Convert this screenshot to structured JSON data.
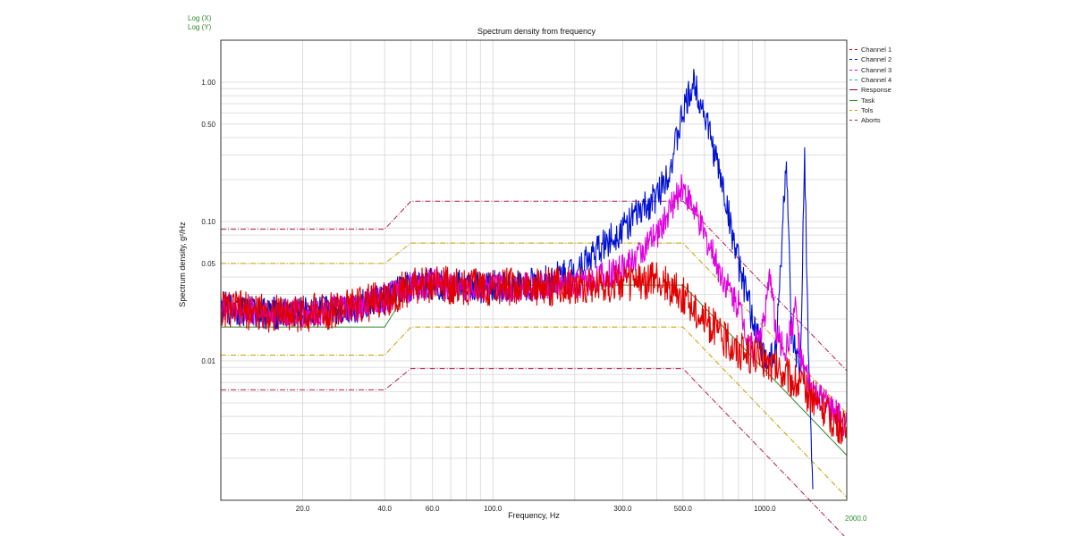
{
  "flags": {
    "log_x": "Log (X)",
    "log_y": "Log (Y)"
  },
  "chart_data": {
    "type": "line",
    "title": "Spectrum density from frequency",
    "xlabel": "Frequency, Hz",
    "ylabel": "Spectrum density, g²/Hz",
    "x_scale": "log",
    "y_scale": "log",
    "xlim": [
      10,
      2000
    ],
    "ylim": [
      0.001,
      2.0
    ],
    "x_ticks": [
      {
        "value": 20,
        "label": "20.0"
      },
      {
        "value": 40,
        "label": "40.0"
      },
      {
        "value": 60,
        "label": "60.0"
      },
      {
        "value": 100,
        "label": "100.0"
      },
      {
        "value": 300,
        "label": "300.0"
      },
      {
        "value": 500,
        "label": "500.0"
      },
      {
        "value": 1000,
        "label": "1000.0"
      }
    ],
    "x_max_label": "2000.0",
    "y_ticks": [
      {
        "value": 1.0,
        "label": "1.00"
      },
      {
        "value": 0.5,
        "label": "0.50"
      },
      {
        "value": 0.1,
        "label": "0.10"
      },
      {
        "value": 0.05,
        "label": "0.05"
      },
      {
        "value": 0.01,
        "label": "0.01"
      }
    ],
    "grid": true,
    "legend_position": "right",
    "series": [
      {
        "name": "Channel 1",
        "color": "#e00000",
        "style": "dashdot",
        "points": [
          [
            10,
            0.024
          ],
          [
            15,
            0.022
          ],
          [
            20,
            0.022
          ],
          [
            30,
            0.024
          ],
          [
            40,
            0.028
          ],
          [
            50,
            0.034
          ],
          [
            60,
            0.036
          ],
          [
            80,
            0.034
          ],
          [
            100,
            0.034
          ],
          [
            150,
            0.034
          ],
          [
            200,
            0.035
          ],
          [
            300,
            0.036
          ],
          [
            400,
            0.038
          ],
          [
            500,
            0.03
          ],
          [
            600,
            0.02
          ],
          [
            700,
            0.015
          ],
          [
            800,
            0.012
          ],
          [
            1000,
            0.01
          ],
          [
            1200,
            0.008
          ],
          [
            1500,
            0.0055
          ],
          [
            2000,
            0.003
          ]
        ]
      },
      {
        "name": "Channel 2",
        "color": "#0010d0",
        "style": "dashdot",
        "points": [
          [
            10,
            0.024
          ],
          [
            15,
            0.022
          ],
          [
            20,
            0.022
          ],
          [
            30,
            0.024
          ],
          [
            40,
            0.028
          ],
          [
            50,
            0.034
          ],
          [
            60,
            0.036
          ],
          [
            80,
            0.034
          ],
          [
            100,
            0.034
          ],
          [
            150,
            0.036
          ],
          [
            200,
            0.045
          ],
          [
            250,
            0.065
          ],
          [
            300,
            0.09
          ],
          [
            400,
            0.15
          ],
          [
            450,
            0.25
          ],
          [
            500,
            0.6
          ],
          [
            550,
            1.0
          ],
          [
            600,
            0.6
          ],
          [
            700,
            0.18
          ],
          [
            800,
            0.05
          ],
          [
            900,
            0.02
          ],
          [
            1000,
            0.01
          ],
          [
            1100,
            0.012
          ],
          [
            1200,
            0.3
          ],
          [
            1250,
            0.015
          ],
          [
            1350,
            0.008
          ],
          [
            1400,
            0.3
          ],
          [
            1450,
            0.008
          ],
          [
            1500,
            0.0012
          ]
        ]
      },
      {
        "name": "Channel 3",
        "color": "#e000e0",
        "style": "dashdot",
        "points": [
          [
            10,
            0.024
          ],
          [
            15,
            0.022
          ],
          [
            20,
            0.022
          ],
          [
            30,
            0.024
          ],
          [
            40,
            0.028
          ],
          [
            50,
            0.034
          ],
          [
            60,
            0.036
          ],
          [
            80,
            0.034
          ],
          [
            100,
            0.034
          ],
          [
            150,
            0.034
          ],
          [
            200,
            0.035
          ],
          [
            300,
            0.045
          ],
          [
            400,
            0.08
          ],
          [
            500,
            0.18
          ],
          [
            550,
            0.12
          ],
          [
            600,
            0.08
          ],
          [
            700,
            0.04
          ],
          [
            800,
            0.025
          ],
          [
            900,
            0.012
          ],
          [
            1000,
            0.02
          ],
          [
            1050,
            0.045
          ],
          [
            1100,
            0.015
          ],
          [
            1200,
            0.012
          ],
          [
            1300,
            0.025
          ],
          [
            1350,
            0.01
          ],
          [
            1500,
            0.006
          ],
          [
            2000,
            0.0035
          ]
        ]
      },
      {
        "name": "Channel 4",
        "color": "#00bcd4",
        "style": "dashdot",
        "points": []
      },
      {
        "name": "Response",
        "color": "#8b0045",
        "style": "solid",
        "points": [
          [
            10,
            0.025
          ],
          [
            15,
            0.023
          ],
          [
            20,
            0.023
          ],
          [
            30,
            0.025
          ],
          [
            40,
            0.029
          ],
          [
            50,
            0.035
          ],
          [
            60,
            0.037
          ],
          [
            80,
            0.035
          ],
          [
            100,
            0.035
          ]
        ]
      },
      {
        "name": "Task",
        "color": "#2e8b2e",
        "style": "solid",
        "points": [
          [
            10,
            0.0175
          ],
          [
            40,
            0.0175
          ],
          [
            50,
            0.035
          ],
          [
            500,
            0.035
          ],
          [
            2000,
            0.0021
          ]
        ]
      },
      {
        "name": "Tols",
        "color": "#c8a000",
        "style": "dashdot",
        "points": [
          [
            10,
            0.05
          ],
          [
            40,
            0.05
          ],
          [
            50,
            0.07
          ],
          [
            500,
            0.07
          ],
          [
            2000,
            0.0042
          ]
        ]
      },
      {
        "name": "Aborts",
        "color": "#b02050",
        "style": "dashdot",
        "points": [
          [
            10,
            0.088
          ],
          [
            40,
            0.088
          ],
          [
            50,
            0.14
          ],
          [
            500,
            0.14
          ],
          [
            2000,
            0.0085
          ]
        ]
      }
    ],
    "lower_tol": {
      "color": "#c8a000",
      "points": [
        [
          10,
          0.011
        ],
        [
          40,
          0.011
        ],
        [
          50,
          0.0175
        ],
        [
          500,
          0.0175
        ],
        [
          2000,
          0.00105
        ]
      ]
    },
    "lower_abort": {
      "color": "#b02050",
      "points": [
        [
          10,
          0.0062
        ],
        [
          40,
          0.0062
        ],
        [
          50,
          0.0088
        ],
        [
          500,
          0.0088
        ],
        [
          2000,
          0.00053
        ]
      ]
    }
  }
}
